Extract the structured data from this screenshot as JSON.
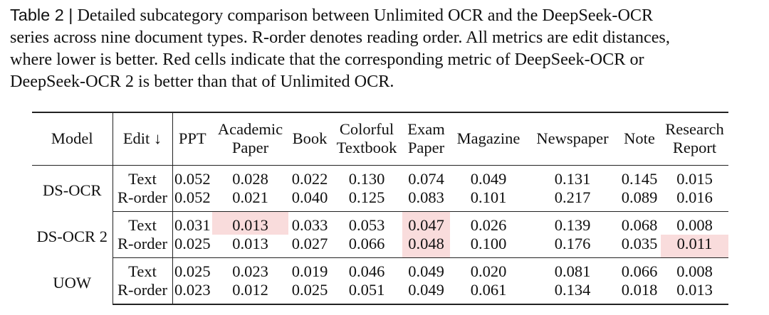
{
  "caption": {
    "label": "Table 2 |",
    "lines": [
      "Detailed subcategory comparison between Unlimited OCR and the DeepSeek-OCR",
      "series across nine document types. R-order denotes reading order. All metrics are edit distances,",
      "where lower is better. Red cells indicate that the corresponding metric of DeepSeek-OCR or",
      "DeepSeek-OCR 2 is better than that of Unlimited OCR."
    ]
  },
  "table": {
    "header": {
      "model": "Model",
      "edit": "Edit ↓",
      "columns": [
        {
          "line1": "PPT",
          "line2": ""
        },
        {
          "line1": "Academic",
          "line2": "Paper"
        },
        {
          "line1": "Book",
          "line2": ""
        },
        {
          "line1": "Colorful",
          "line2": "Textbook"
        },
        {
          "line1": "Exam",
          "line2": "Paper"
        },
        {
          "line1": "Magazine",
          "line2": ""
        },
        {
          "line1": "Newspaper",
          "line2": ""
        },
        {
          "line1": "Note",
          "line2": ""
        },
        {
          "line1": "Research",
          "line2": "Report"
        }
      ]
    },
    "groups": [
      {
        "model": "DS-OCR",
        "rows": [
          {
            "metric": "Text",
            "values": [
              "0.052",
              "0.028",
              "0.022",
              "0.130",
              "0.074",
              "0.049",
              "0.131",
              "0.145",
              "0.015"
            ],
            "highlight": [
              false,
              false,
              false,
              false,
              false,
              false,
              false,
              false,
              false
            ]
          },
          {
            "metric": "R-order",
            "values": [
              "0.052",
              "0.021",
              "0.040",
              "0.125",
              "0.083",
              "0.101",
              "0.217",
              "0.089",
              "0.016"
            ],
            "highlight": [
              false,
              false,
              false,
              false,
              false,
              false,
              false,
              false,
              false
            ]
          }
        ]
      },
      {
        "model": "DS-OCR 2",
        "rows": [
          {
            "metric": "Text",
            "values": [
              "0.031",
              "0.013",
              "0.033",
              "0.053",
              "0.047",
              "0.026",
              "0.139",
              "0.068",
              "0.008"
            ],
            "highlight": [
              false,
              true,
              false,
              false,
              true,
              false,
              false,
              false,
              false
            ]
          },
          {
            "metric": "R-order",
            "values": [
              "0.025",
              "0.013",
              "0.027",
              "0.066",
              "0.048",
              "0.100",
              "0.176",
              "0.035",
              "0.011"
            ],
            "highlight": [
              false,
              false,
              false,
              false,
              true,
              false,
              false,
              false,
              true
            ]
          }
        ]
      },
      {
        "model": "UOW",
        "rows": [
          {
            "metric": "Text",
            "values": [
              "0.025",
              "0.023",
              "0.019",
              "0.046",
              "0.049",
              "0.020",
              "0.081",
              "0.066",
              "0.008"
            ],
            "highlight": [
              false,
              false,
              false,
              false,
              false,
              false,
              false,
              false,
              false
            ]
          },
          {
            "metric": "R-order",
            "values": [
              "0.023",
              "0.012",
              "0.025",
              "0.051",
              "0.049",
              "0.061",
              "0.134",
              "0.018",
              "0.013"
            ],
            "highlight": [
              false,
              false,
              false,
              false,
              false,
              false,
              false,
              false,
              false
            ]
          }
        ]
      }
    ],
    "colors": {
      "highlight": "#f9dcdc",
      "rule": "#222222",
      "text": "#111111"
    }
  }
}
